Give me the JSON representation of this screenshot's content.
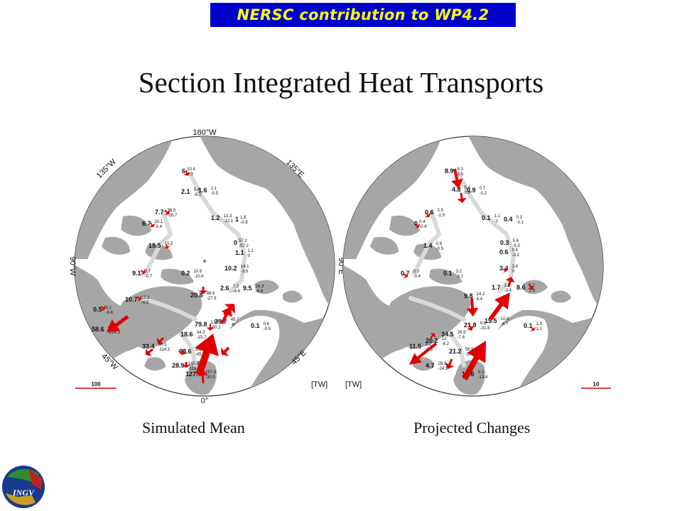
{
  "banner": "NERSC contribution to WP4.2",
  "title": "Section Integrated Heat Transports",
  "unit_label": "[TW]",
  "left_map": {
    "caption": "Simulated Mean",
    "scale_value": "100",
    "lon_labels": {
      "top": "180°W",
      "bottom": "0°",
      "left": "90°W",
      "right": "90°E",
      "nw": "135°W",
      "ne": "135°E",
      "sw": "45°W",
      "se": "45°E"
    },
    "values": [
      {
        "main": "6",
        "a": "10.4",
        "b": "3.3"
      },
      {
        "main": "2.1",
        "a": "5.4",
        "b": "-6.3"
      },
      {
        "main": "1.6",
        "a": "2.1",
        "b": "-0.5"
      },
      {
        "main": "7.7",
        "a": "36.5",
        "b": "-28.7"
      },
      {
        "main": "6.7",
        "a": "10.1",
        "b": "-3.4"
      },
      {
        "main": "1.2",
        "a": "13.3",
        "b": "-12.1"
      },
      {
        "main": "1",
        "a": "1.8",
        "b": "-0.8"
      },
      {
        "main": "15.5",
        "a": "15.5",
        "b": ""
      },
      {
        "main": "0",
        "a": "57.2",
        "b": "-57.2"
      },
      {
        "main": "1.1",
        "a": "1.1",
        "b": "0"
      },
      {
        "main": "9.1",
        "a": "9.7",
        "b": "-0.7"
      },
      {
        "main": "0.2",
        "a": "10.6",
        "b": "-10.4"
      },
      {
        "main": "10.2",
        "a": "14.1",
        "b": "-3.9"
      },
      {
        "main": "10.7",
        "a": "15.2",
        "b": "-4.5"
      },
      {
        "main": "20.8",
        "a": "48.6",
        "b": "-27.9"
      },
      {
        "main": "2.6",
        "a": "7.2",
        "b": "-4.6"
      },
      {
        "main": "9.5",
        "a": "16.3",
        "b": "-6.8"
      },
      {
        "main": "0.5",
        "a": "6.1",
        "b": "-5.6"
      },
      {
        "main": "58.6",
        "a": "4",
        "b": "-254.3"
      },
      {
        "main": "79.8",
        "a": "130",
        "b": "-50.2"
      },
      {
        "main": "39.7",
        "a": "45.7",
        "b": "-6"
      },
      {
        "main": "0.1",
        "a": "0.6",
        "b": "-0.5"
      },
      {
        "main": "18.6",
        "a": "34.3",
        "b": "-15.7"
      },
      {
        "main": "33.4",
        "a": "80.5",
        "b": "-114.1"
      },
      {
        "main": "64.6",
        "a": "109.8",
        "b": "-45.3"
      },
      {
        "main": "28.9",
        "a": "145.3",
        "b": "-118.4"
      },
      {
        "main": "127.4",
        "a": "157.9",
        "b": "-30.5"
      }
    ]
  },
  "right_map": {
    "caption": "Projected Changes",
    "scale_value": "10",
    "values": [
      {
        "main": "8.9",
        "a": "8.3",
        "b": "2.6"
      },
      {
        "main": "4.8",
        "a": "5.4",
        "b": "0.9"
      },
      {
        "main": "0.9",
        "a": "0.7",
        "b": "-0.2"
      },
      {
        "main": "0.6",
        "a": "2.5",
        "b": "-1.9"
      },
      {
        "main": "0",
        "a": "0.4",
        "b": "-0.4"
      },
      {
        "main": "0.1",
        "a": "1.1",
        "b": "-1"
      },
      {
        "main": "0.4",
        "a": "0.3",
        "b": "-0.1"
      },
      {
        "main": "1.4",
        "a": "0.9",
        "b": "-0.5"
      },
      {
        "main": "0.3",
        "a": "5.8",
        "b": "-5.5"
      },
      {
        "main": "0.6",
        "a": "0.4",
        "b": "-0.2"
      },
      {
        "main": "0.7",
        "a": "0.3",
        "b": "-0.4"
      },
      {
        "main": "0.1",
        "a": "3.2",
        "b": "-3.1"
      },
      {
        "main": "3.4",
        "a": "3.4",
        "b": "0"
      },
      {
        "main": "9.8",
        "a": "14.2",
        "b": "4.4"
      },
      {
        "main": "1.7",
        "a": "1.3",
        "b": "-0.4"
      },
      {
        "main": "8.6",
        "a": "5.7",
        "b": "2.9"
      },
      {
        "main": "15.5",
        "a": "10.8",
        "b": "-4.7"
      },
      {
        "main": "21.8",
        "a": "9.8",
        "b": "-31.6"
      },
      {
        "main": "0.1",
        "a": "1.3",
        "b": "1.2"
      },
      {
        "main": "34.5",
        "a": "26.9",
        "b": "-7.6"
      },
      {
        "main": "20.2",
        "a": "12",
        "b": "-8.2"
      },
      {
        "main": "11.5",
        "a": "3.2",
        "b": "-8.3"
      },
      {
        "main": "21.2",
        "a": "58.9",
        "b": "-37.5"
      },
      {
        "main": "4.7",
        "a": "28.9",
        "b": "-24.1"
      },
      {
        "main": "16.6",
        "a": "3.2",
        "b": "-13.4"
      }
    ]
  },
  "colors": {
    "banner_bg": "#0000cc",
    "banner_text": "#ffff00",
    "land": "#a6a6a6",
    "arrow": "#e00000",
    "section": "#d9d9d9"
  }
}
